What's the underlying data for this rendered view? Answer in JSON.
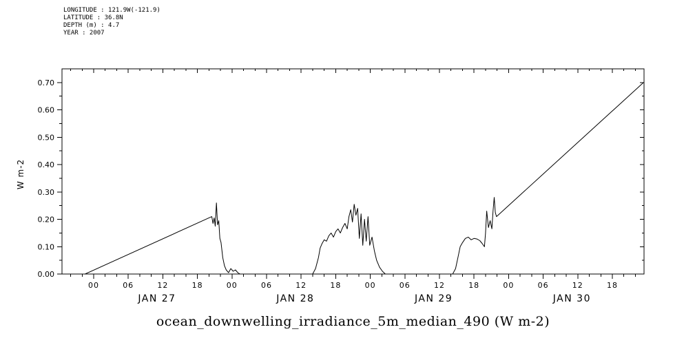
{
  "header": {
    "lines": [
      "LONGITUDE : 121.9W(-121.9)",
      "LATITUDE : 36.8N",
      "DEPTH (m) : 4.7",
      "YEAR : 2007"
    ]
  },
  "chart_data": {
    "type": "line",
    "title": "ocean_downwelling_irradiance_5m_median_490 (W m-2)",
    "ylabel": "W m-2",
    "xlabel": "",
    "time_origin": "hours since 2007-01-27 00:00",
    "xlim_hours": [
      -5.5,
      95.5
    ],
    "ylim": [
      0,
      0.75
    ],
    "grid": false,
    "line_color": "#000000",
    "legend": "none",
    "xticks": [
      {
        "hour": 0,
        "label": "00"
      },
      {
        "hour": 6,
        "label": "06"
      },
      {
        "hour": 12,
        "label": "12"
      },
      {
        "hour": 18,
        "label": "18"
      },
      {
        "hour": 24,
        "label": "00"
      },
      {
        "hour": 30,
        "label": "06"
      },
      {
        "hour": 36,
        "label": "12"
      },
      {
        "hour": 42,
        "label": "18"
      },
      {
        "hour": 48,
        "label": "00"
      },
      {
        "hour": 54,
        "label": "06"
      },
      {
        "hour": 60,
        "label": "12"
      },
      {
        "hour": 66,
        "label": "18"
      },
      {
        "hour": 72,
        "label": "00"
      },
      {
        "hour": 78,
        "label": "06"
      },
      {
        "hour": 84,
        "label": "12"
      },
      {
        "hour": 90,
        "label": "18"
      }
    ],
    "xtick_minor_step": 2,
    "day_labels": [
      {
        "hour": 11,
        "label": "JAN 27"
      },
      {
        "hour": 35,
        "label": "JAN 28"
      },
      {
        "hour": 59,
        "label": "JAN 29"
      },
      {
        "hour": 83,
        "label": "JAN 30"
      }
    ],
    "yticks": [
      {
        "value": 0.0,
        "label": "0.00"
      },
      {
        "value": 0.1,
        "label": "0.10"
      },
      {
        "value": 0.2,
        "label": "0.20"
      },
      {
        "value": 0.3,
        "label": "0.30"
      },
      {
        "value": 0.4,
        "label": "0.40"
      },
      {
        "value": 0.5,
        "label": "0.50"
      },
      {
        "value": 0.6,
        "label": "0.60"
      },
      {
        "value": 0.7,
        "label": "0.70"
      }
    ],
    "ytick_minor_step": 0.05,
    "series": [
      {
        "name": "ocean_downwelling_irradiance_5m_median_490",
        "units": "W m-2",
        "points": [
          [
            -1.5,
            0.0
          ],
          [
            20.5,
            0.21
          ],
          [
            20.7,
            0.185
          ],
          [
            20.9,
            0.205
          ],
          [
            21.1,
            0.175
          ],
          [
            21.3,
            0.26
          ],
          [
            21.5,
            0.18
          ],
          [
            21.7,
            0.195
          ],
          [
            21.9,
            0.13
          ],
          [
            22.1,
            0.115
          ],
          [
            22.4,
            0.06
          ],
          [
            22.7,
            0.03
          ],
          [
            23.0,
            0.015
          ],
          [
            23.4,
            0.005
          ],
          [
            23.8,
            0.02
          ],
          [
            24.2,
            0.01
          ],
          [
            24.6,
            0.015
          ],
          [
            25.0,
            0.005
          ],
          [
            25.4,
            0.0
          ],
          [
            38.0,
            0.0
          ],
          [
            38.5,
            0.02
          ],
          [
            39.0,
            0.06
          ],
          [
            39.3,
            0.095
          ],
          [
            39.6,
            0.11
          ],
          [
            40.0,
            0.125
          ],
          [
            40.4,
            0.12
          ],
          [
            40.8,
            0.14
          ],
          [
            41.2,
            0.15
          ],
          [
            41.6,
            0.135
          ],
          [
            42.0,
            0.155
          ],
          [
            42.4,
            0.165
          ],
          [
            42.8,
            0.15
          ],
          [
            43.2,
            0.17
          ],
          [
            43.6,
            0.185
          ],
          [
            44.0,
            0.165
          ],
          [
            44.3,
            0.21
          ],
          [
            44.6,
            0.235
          ],
          [
            44.9,
            0.19
          ],
          [
            45.2,
            0.255
          ],
          [
            45.5,
            0.215
          ],
          [
            45.8,
            0.24
          ],
          [
            46.1,
            0.13
          ],
          [
            46.4,
            0.22
          ],
          [
            46.7,
            0.105
          ],
          [
            47.0,
            0.2
          ],
          [
            47.3,
            0.12
          ],
          [
            47.6,
            0.21
          ],
          [
            47.9,
            0.105
          ],
          [
            48.3,
            0.135
          ],
          [
            48.7,
            0.085
          ],
          [
            49.1,
            0.05
          ],
          [
            49.6,
            0.025
          ],
          [
            50.1,
            0.01
          ],
          [
            50.6,
            0.0
          ],
          [
            62.3,
            0.0
          ],
          [
            62.8,
            0.02
          ],
          [
            63.2,
            0.06
          ],
          [
            63.6,
            0.1
          ],
          [
            64.0,
            0.115
          ],
          [
            64.5,
            0.13
          ],
          [
            65.0,
            0.135
          ],
          [
            65.5,
            0.125
          ],
          [
            66.0,
            0.13
          ],
          [
            66.5,
            0.128
          ],
          [
            67.0,
            0.122
          ],
          [
            67.4,
            0.112
          ],
          [
            67.8,
            0.1
          ],
          [
            68.0,
            0.15
          ],
          [
            68.2,
            0.23
          ],
          [
            68.5,
            0.17
          ],
          [
            68.8,
            0.195
          ],
          [
            69.1,
            0.165
          ],
          [
            69.3,
            0.23
          ],
          [
            69.5,
            0.28
          ],
          [
            69.7,
            0.225
          ],
          [
            69.9,
            0.21
          ],
          [
            95.4,
            0.7
          ]
        ]
      }
    ]
  }
}
